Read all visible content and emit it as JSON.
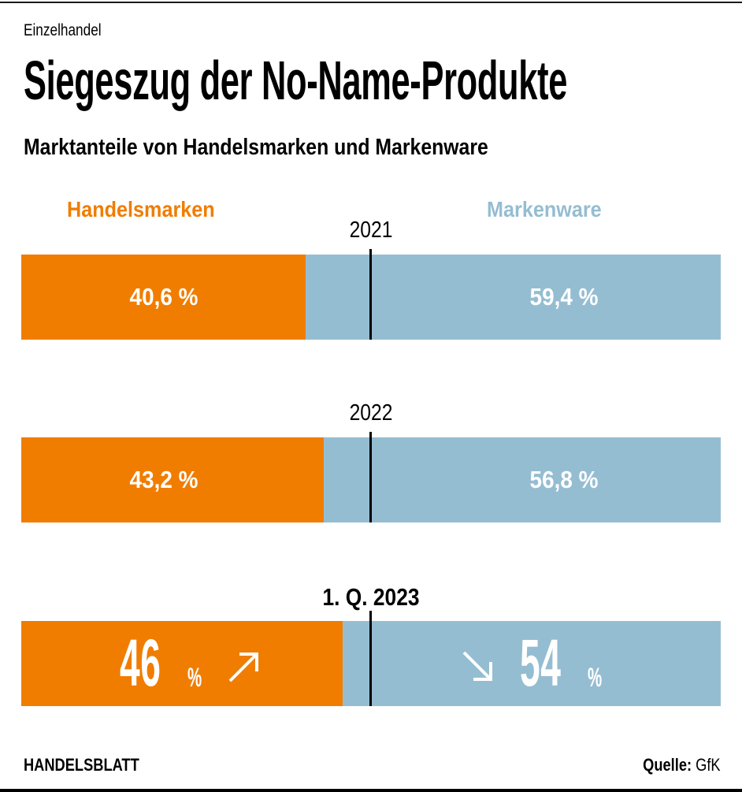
{
  "kicker": "Einzelhandel",
  "title": "Siegeszug der No-Name-Produkte",
  "subtitle": "Marktanteile von Handelsmarken und Markenware",
  "legend": {
    "left": "Handelsmarken",
    "right": "Markenware"
  },
  "colors": {
    "handelsmarken": "#F07D00",
    "markenware": "#95BDD2"
  },
  "rows": [
    {
      "period": "2021",
      "left_label": "40,6 %",
      "right_label": "59,4 %"
    },
    {
      "period": "2022",
      "left_label": "43,2 %",
      "right_label": "56,8 %"
    },
    {
      "period": "1. Q. 2023",
      "left_number": "46",
      "left_unit": "%",
      "right_number": "54",
      "right_unit": "%",
      "left_trend": "arrow-up-right-icon",
      "right_trend": "arrow-down-right-icon"
    }
  ],
  "footer": {
    "brand": "HANDELSBLATT",
    "source_label": "Quelle:",
    "source": "GfK"
  },
  "chart_data": {
    "type": "bar",
    "orientation": "horizontal-stacked-100",
    "title": "Marktanteile von Handelsmarken und Markenware",
    "categories": [
      "2021",
      "2022",
      "1. Q. 2023"
    ],
    "series": [
      {
        "name": "Handelsmarken",
        "values": [
          40.6,
          43.2,
          46
        ]
      },
      {
        "name": "Markenware",
        "values": [
          59.4,
          56.8,
          54
        ]
      }
    ],
    "unit": "%",
    "xlim": [
      0,
      100
    ],
    "reference_line": 50,
    "legend": "top"
  }
}
